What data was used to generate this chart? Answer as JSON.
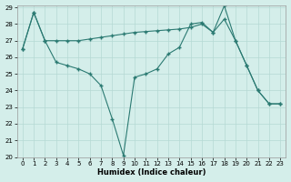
{
  "line1_x": [
    0,
    1,
    2,
    3,
    4,
    5,
    6,
    7,
    8,
    9,
    10,
    11,
    12,
    13,
    14,
    15,
    16,
    17,
    18,
    19,
    20,
    21,
    22,
    23
  ],
  "line1_y": [
    26.5,
    28.7,
    27.0,
    27.0,
    27.0,
    27.0,
    27.1,
    27.2,
    27.3,
    27.4,
    27.5,
    27.55,
    27.6,
    27.65,
    27.7,
    27.8,
    28.0,
    27.5,
    28.3,
    27.0,
    25.5,
    24.0,
    23.2,
    23.2
  ],
  "line2_x": [
    0,
    1,
    2,
    3,
    4,
    5,
    6,
    7,
    8,
    9,
    10,
    11,
    12,
    13,
    14,
    15,
    16,
    17,
    18,
    19,
    20,
    21,
    22,
    23
  ],
  "line2_y": [
    26.5,
    28.7,
    27.0,
    25.7,
    25.5,
    25.3,
    25.0,
    24.3,
    22.3,
    20.1,
    24.8,
    25.0,
    25.3,
    26.2,
    26.6,
    28.0,
    28.1,
    27.5,
    29.1,
    27.0,
    25.5,
    24.0,
    23.2,
    23.2
  ],
  "line_color": "#2b7a72",
  "bg_color": "#d4eeea",
  "grid_color": "#b5d9d4",
  "xlabel": "Humidex (Indice chaleur)",
  "ylim": [
    20,
    29
  ],
  "xlim": [
    -0.5,
    23.5
  ],
  "yticks": [
    20,
    21,
    22,
    23,
    24,
    25,
    26,
    27,
    28,
    29
  ],
  "xticks": [
    0,
    1,
    2,
    3,
    4,
    5,
    6,
    7,
    8,
    9,
    10,
    11,
    12,
    13,
    14,
    15,
    16,
    17,
    18,
    19,
    20,
    21,
    22,
    23
  ]
}
